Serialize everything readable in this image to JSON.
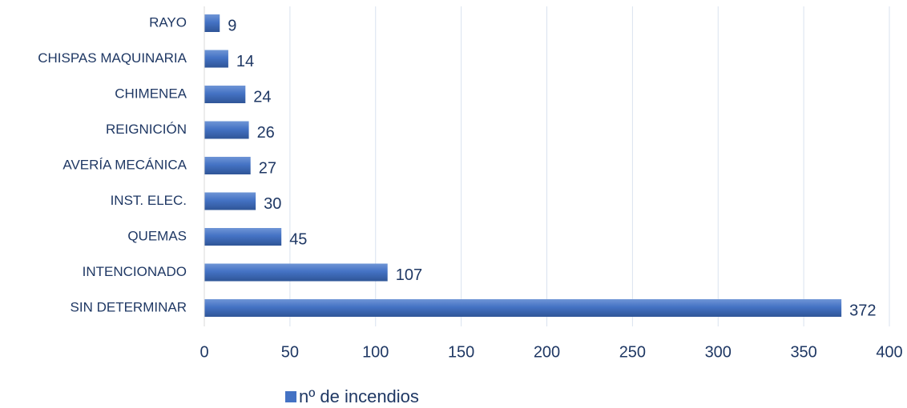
{
  "chart_data": {
    "type": "bar",
    "orientation": "horizontal",
    "categories": [
      "RAYO",
      "CHISPAS MAQUINARIA",
      "CHIMENEA",
      "REIGNICIÓN",
      "AVERÍA MECÁNICA",
      "INST. ELEC.",
      "QUEMAS",
      "INTENCIONADO",
      "SIN DETERMINAR"
    ],
    "series": [
      {
        "name": "nº de incendios",
        "color": "#4472c4",
        "values": [
          9,
          14,
          24,
          26,
          27,
          30,
          45,
          107,
          372
        ]
      }
    ],
    "xlim": [
      0,
      400
    ],
    "xticks": [
      0,
      50,
      100,
      150,
      200,
      250,
      300,
      350,
      400
    ],
    "grid": true,
    "legend": "bottom"
  }
}
